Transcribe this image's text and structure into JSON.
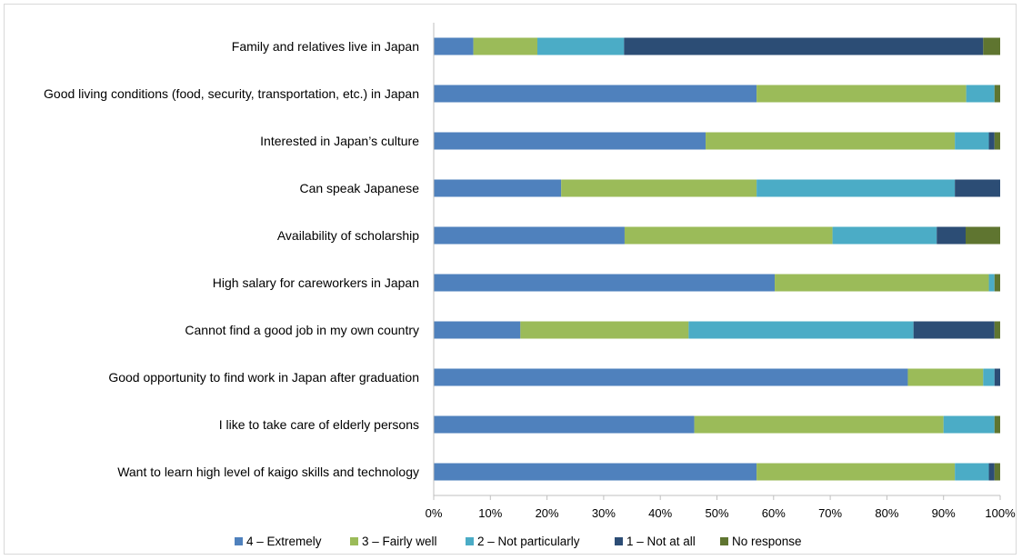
{
  "chart_data": {
    "type": "bar",
    "orientation": "horizontal",
    "stacked": true,
    "categories": [
      "Family and relatives live in Japan",
      "Good living conditions (food, security, transportation, etc.) in Japan",
      "Interested in Japan’s culture",
      "Can speak Japanese",
      "Availability of scholarship",
      "High salary for careworkers in Japan",
      "Cannot find a good job in my own country",
      "Good opportunity to find work in Japan after graduation",
      "I like to take care of elderly persons",
      "Want to learn high level of kaigo skills and technology"
    ],
    "series": [
      {
        "name": "4 – Extremely",
        "color": "#4f81bd",
        "values": [
          7,
          57,
          48,
          22.5,
          33.7,
          60.2,
          15.3,
          83.7,
          46,
          57
        ]
      },
      {
        "name": "3 – Fairly well",
        "color": "#9bbb59",
        "values": [
          11.3,
          37,
          44,
          34.5,
          36.7,
          37.8,
          29.7,
          13.3,
          44,
          35
        ]
      },
      {
        "name": "2 – Not particularly",
        "color": "#4bacc6",
        "values": [
          15.3,
          5,
          6,
          35,
          18.4,
          1,
          39.7,
          2,
          9,
          6
        ]
      },
      {
        "name": "1 – Not at all",
        "color": "#2c4d75",
        "values": [
          63.4,
          0,
          1,
          8,
          5.1,
          0,
          14.3,
          1,
          0,
          1
        ]
      },
      {
        "name": "No response",
        "color": "#5f7530",
        "values": [
          3,
          1,
          1,
          0,
          6.1,
          1,
          1,
          0,
          1,
          1
        ]
      }
    ],
    "x_ticks": [
      "0%",
      "10%",
      "20%",
      "30%",
      "40%",
      "50%",
      "60%",
      "70%",
      "80%",
      "90%",
      "100%"
    ],
    "xlim": [
      0,
      100
    ],
    "x_unit": "percent",
    "grid": false,
    "legend_position": "bottom"
  }
}
